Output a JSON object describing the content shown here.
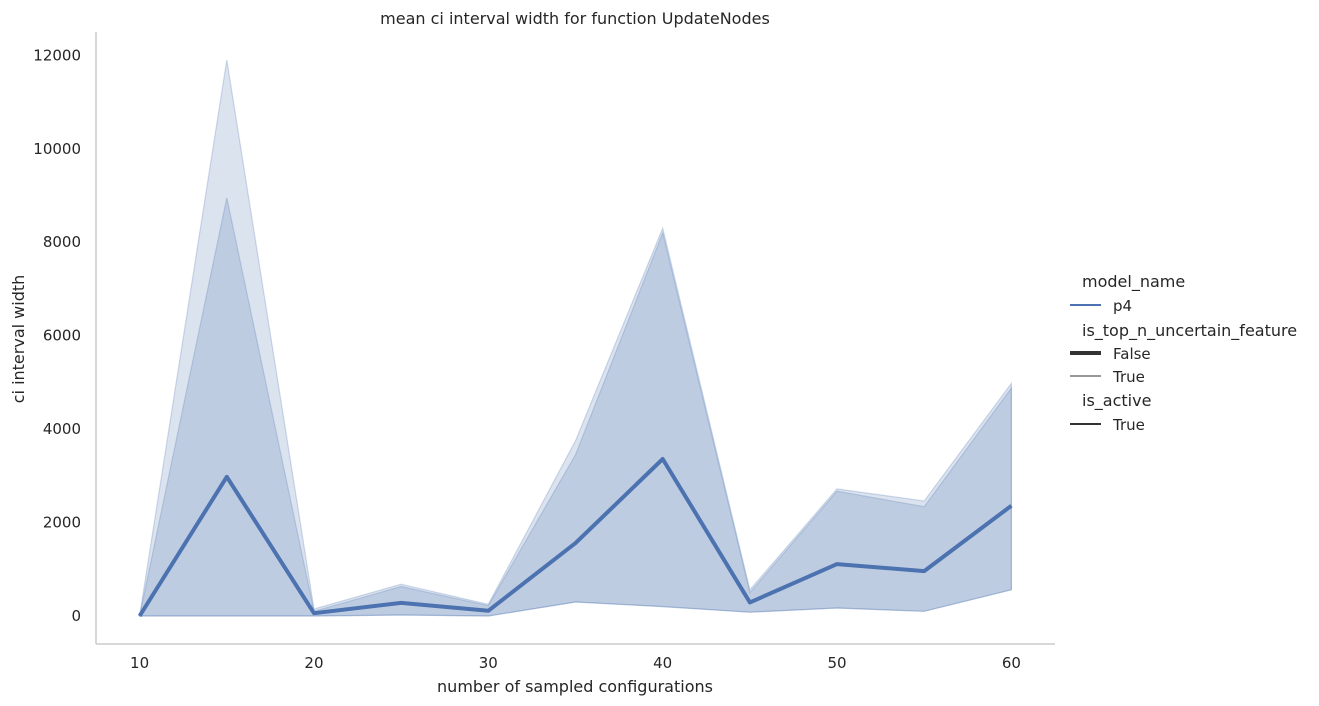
{
  "chart_data": {
    "type": "line",
    "title": "mean ci interval width for function UpdateNodes",
    "xlabel": "number of sampled configurations",
    "ylabel": "ci interval width",
    "x_ticks": [
      "10",
      "20",
      "30",
      "40",
      "50",
      "60"
    ],
    "y_ticks": [
      "0",
      "2000",
      "4000",
      "6000",
      "8000",
      "10000",
      "12000"
    ],
    "xlim": [
      7.5,
      62.5
    ],
    "ylim": [
      -600,
      12500
    ],
    "grid": false,
    "legend_position": "right",
    "x": [
      10,
      15,
      20,
      25,
      30,
      35,
      40,
      45,
      50,
      55,
      60
    ],
    "series": [
      {
        "name": "p4, False, True",
        "style": "thick",
        "values": [
          0,
          2980,
          60,
          280,
          110,
          1560,
          3360,
          290,
          1110,
          960,
          2360
        ],
        "ci_low": [
          0,
          0,
          0,
          20,
          0,
          300,
          200,
          80,
          170,
          100,
          560
        ],
        "ci_high": [
          0,
          8950,
          100,
          630,
          220,
          3450,
          8200,
          500,
          2670,
          2340,
          4880
        ]
      },
      {
        "name": "p4, True, True",
        "style": "thin",
        "values": [
          0,
          2980,
          60,
          280,
          110,
          1560,
          3360,
          290,
          1110,
          960,
          2360
        ],
        "ci_low": [
          0,
          0,
          0,
          20,
          0,
          300,
          200,
          80,
          170,
          100,
          560
        ],
        "ci_high": [
          0,
          11900,
          150,
          680,
          250,
          3750,
          8300,
          560,
          2720,
          2460,
          4980
        ]
      }
    ],
    "legend": {
      "groups": [
        {
          "title": "model_name",
          "entries": [
            {
              "label": "p4",
              "kind": "color"
            }
          ]
        },
        {
          "title": "is_top_n_uncertain_feature",
          "entries": [
            {
              "label": "False",
              "kind": "thick"
            },
            {
              "label": "True",
              "kind": "thin"
            }
          ]
        },
        {
          "title": "is_active",
          "entries": [
            {
              "label": "True",
              "kind": "solid"
            }
          ]
        }
      ]
    },
    "colors": {
      "line": "#4c72b0",
      "band": "#4c72b0",
      "axis": "#cccccc",
      "text": "#262626"
    }
  }
}
